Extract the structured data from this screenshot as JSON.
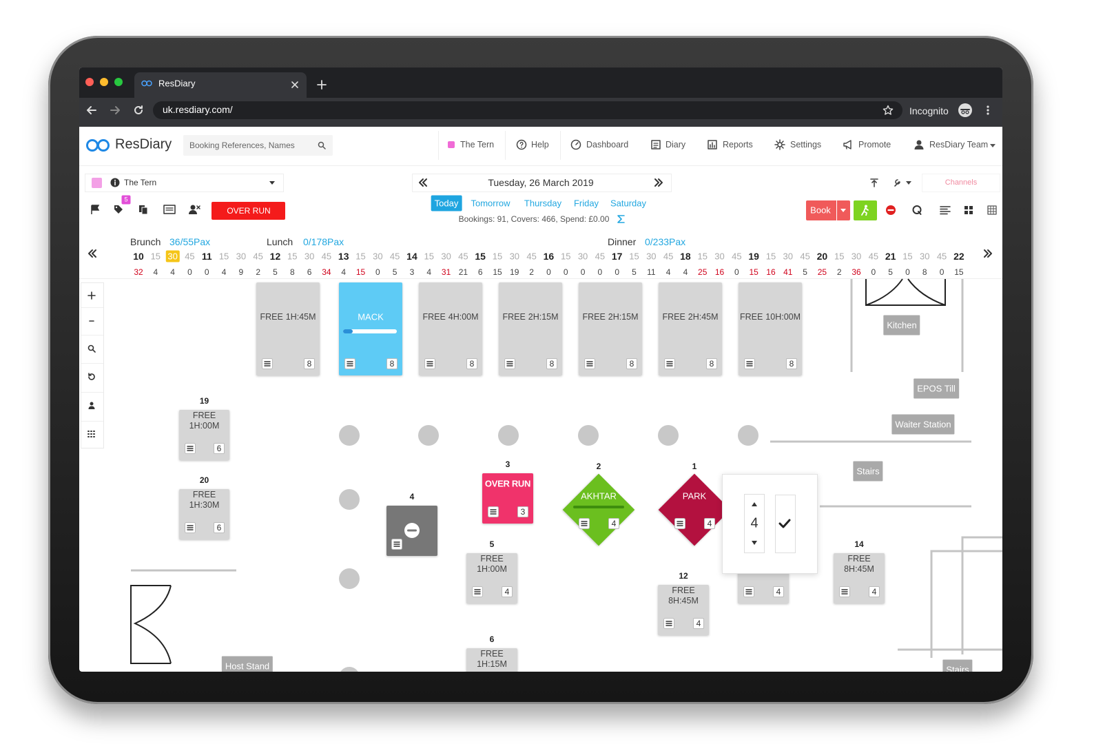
{
  "browser": {
    "tab_title": "ResDiary",
    "url": "uk.resdiary.com/",
    "profile": "Incognito"
  },
  "header": {
    "brand": "ResDiary",
    "search_placeholder": "Booking References, Names",
    "nav": [
      "The Tern",
      "Help",
      "Dashboard",
      "Diary",
      "Reports",
      "Settings",
      "Promote",
      "ResDiary Team"
    ]
  },
  "toolbar": {
    "venue": "The Tern",
    "badge": "5",
    "overrun_button": "OVER RUN",
    "date": "Tuesday, 26 March 2019",
    "days": [
      "Today",
      "Tomorrow",
      "Thursday",
      "Friday",
      "Saturday"
    ],
    "summary": "Bookings: 91, Covers: 466, Spend: £0.00",
    "book_button": "Book",
    "channels": "Channels"
  },
  "timeline": {
    "services": [
      {
        "name": "Brunch",
        "pax": "36/55Pax"
      },
      {
        "name": "Lunch",
        "pax": "0/178Pax"
      },
      {
        "name": "Dinner",
        "pax": "0/233Pax"
      }
    ],
    "times": [
      10,
      15,
      30,
      45,
      11,
      15,
      30,
      45,
      12,
      15,
      30,
      45,
      13,
      15,
      30,
      45,
      14,
      15,
      30,
      45,
      15,
      15,
      30,
      45,
      16,
      15,
      30,
      45,
      17,
      15,
      30,
      45,
      18,
      15,
      30,
      45,
      19,
      15,
      30,
      45,
      20,
      15,
      30,
      45,
      21,
      15,
      30,
      45,
      22
    ],
    "counts": [
      32,
      4,
      4,
      0,
      0,
      4,
      9,
      2,
      5,
      8,
      6,
      34,
      4,
      15,
      0,
      5,
      3,
      4,
      31,
      21,
      6,
      15,
      19,
      2,
      0,
      0,
      0,
      0,
      0,
      5,
      11,
      4,
      4,
      25,
      16,
      0,
      15,
      16,
      41,
      5,
      25,
      2,
      36,
      0,
      5,
      0,
      8,
      0,
      15
    ],
    "alerts": [
      true,
      false,
      false,
      false,
      false,
      false,
      false,
      false,
      false,
      false,
      false,
      true,
      false,
      true,
      false,
      false,
      false,
      false,
      true,
      false,
      false,
      false,
      false,
      false,
      false,
      false,
      false,
      false,
      false,
      false,
      false,
      false,
      false,
      true,
      true,
      false,
      true,
      true,
      true,
      false,
      true,
      false,
      true,
      false,
      false,
      false,
      false,
      false,
      false
    ]
  },
  "floor": {
    "tables": [
      {
        "status": "FREE",
        "duration": "1H:45M",
        "covers": "8",
        "color": "#d6d6d6"
      },
      {
        "name": "MACK",
        "covers": "8",
        "color": "#5ecbf5"
      },
      {
        "status": "FREE",
        "duration": "4H:00M",
        "covers": "8",
        "color": "#d6d6d6"
      },
      {
        "status": "FREE",
        "duration": "2H:15M",
        "covers": "8",
        "color": "#d6d6d6"
      },
      {
        "status": "FREE",
        "duration": "2H:15M",
        "covers": "8",
        "color": "#d6d6d6"
      },
      {
        "status": "FREE",
        "duration": "2H:45M",
        "covers": "8",
        "color": "#d6d6d6"
      },
      {
        "status": "FREE",
        "duration": "10H:00M",
        "covers": "8",
        "color": "#d6d6d6"
      },
      {
        "number": "19",
        "status": "FREE",
        "duration": "1H:00M",
        "covers": "6",
        "color": "#d6d6d6"
      },
      {
        "number": "20",
        "status": "FREE",
        "duration": "1H:30M",
        "covers": "6",
        "color": "#d6d6d6"
      },
      {
        "number": "4",
        "color": "#777777"
      },
      {
        "number": "3",
        "name": "OVER RUN",
        "covers": "3",
        "color": "#f0336b"
      },
      {
        "number": "2",
        "name": "AKHTAR",
        "covers": "4",
        "color": "#6bbf1f"
      },
      {
        "number": "1",
        "name": "PARK",
        "covers": "4",
        "color": "#b3113f"
      },
      {
        "number": "5",
        "status": "FREE",
        "duration": "1H:00M",
        "covers": "4",
        "color": "#d6d6d6"
      },
      {
        "number": "6",
        "status": "FREE",
        "duration": "1H:15M",
        "color": "#d6d6d6"
      },
      {
        "number": "12",
        "status": "FREE",
        "duration": "8H:45M",
        "covers": "4",
        "color": "#d6d6d6"
      },
      {
        "covers": "4",
        "color": "#d6d6d6"
      },
      {
        "number": "14",
        "status": "FREE",
        "duration": "8H:45M",
        "covers": "4",
        "color": "#d6d6d6"
      }
    ],
    "areas": [
      "Kitchen",
      "EPOS Till",
      "Waiter Station",
      "Stairs",
      "Host Stand",
      "Stairs"
    ],
    "popup": {
      "value": "4"
    }
  }
}
